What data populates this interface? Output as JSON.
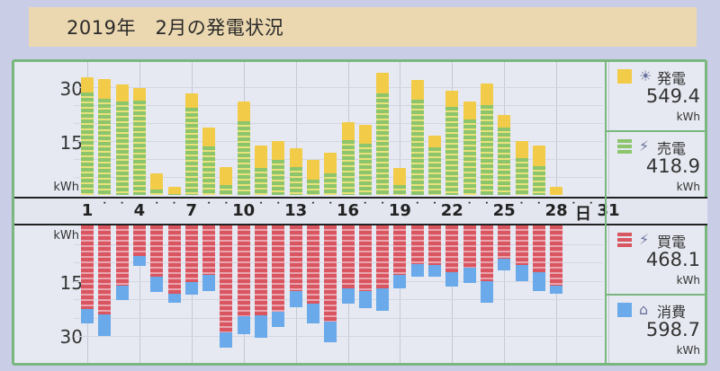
{
  "header": {
    "title": "2019年　2月の発電状況"
  },
  "axis": {
    "top_y_labels": [
      "30",
      "15"
    ],
    "top_unit": "kWh",
    "bottom_y_labels": [
      "15",
      "30"
    ],
    "bottom_unit": "kWh",
    "x_ticks": [
      "1",
      "4",
      "7",
      "10",
      "13",
      "16",
      "19",
      "22",
      "25",
      "28",
      "31"
    ],
    "x_unit": "日"
  },
  "legend": {
    "generation": {
      "label": "発電",
      "value": "549.4",
      "unit": "kWh",
      "color": "#f2cc48",
      "icon": "sun-icon"
    },
    "sold": {
      "label": "売電",
      "value": "418.9",
      "unit": "kWh",
      "color": "#8dc56c",
      "icon": "power-tower-icon"
    },
    "bought": {
      "label": "買電",
      "value": "468.1",
      "unit": "kWh",
      "color": "#d9555f",
      "icon": "power-tower-icon"
    },
    "consumption": {
      "label": "消費",
      "value": "598.7",
      "unit": "kWh",
      "color": "#6aa9ea",
      "icon": "house-icon"
    }
  },
  "chart_data": {
    "type": "bar",
    "title": "2019年 2月の発電状況",
    "xlabel": "日",
    "ylabel": "kWh",
    "x": [
      1,
      2,
      3,
      4,
      5,
      6,
      7,
      8,
      9,
      10,
      11,
      12,
      13,
      14,
      15,
      16,
      17,
      18,
      19,
      20,
      21,
      22,
      23,
      24,
      25,
      26,
      27,
      28
    ],
    "top_ylim": [
      0,
      35
    ],
    "bottom_ylim": [
      0,
      35
    ],
    "series": [
      {
        "name": "発電",
        "panel": "top",
        "values": [
          32.8,
          32.2,
          30.7,
          29.7,
          6.0,
          2.2,
          28.2,
          18.7,
          7.7,
          26.0,
          13.7,
          15.0,
          13.0,
          9.7,
          11.7,
          20.2,
          19.5,
          34.0,
          7.5,
          32.0,
          16.5,
          29.0,
          26.0,
          31.0,
          22.2,
          15.0,
          13.7,
          2.2
        ]
      },
      {
        "name": "売電",
        "panel": "top",
        "values": [
          28.5,
          26.8,
          26.0,
          26.2,
          1.5,
          0.3,
          24.2,
          13.5,
          2.7,
          20.5,
          7.5,
          9.7,
          7.7,
          4.2,
          6.0,
          15.2,
          14.2,
          28.2,
          2.7,
          26.5,
          13.2,
          24.5,
          21.0,
          25.0,
          18.7,
          10.2,
          8.0,
          0.0
        ]
      },
      {
        "name": "消費",
        "panel": "bottom",
        "values": [
          26.5,
          30.0,
          20.3,
          10.9,
          18.1,
          21.0,
          18.8,
          17.8,
          33.2,
          29.6,
          30.5,
          27.6,
          22.3,
          26.6,
          31.7,
          21.3,
          22.5,
          23.2,
          17.0,
          14.0,
          14.0,
          16.7,
          15.5,
          20.9,
          12.2,
          15.0,
          17.9,
          18.6
        ]
      },
      {
        "name": "買電",
        "panel": "bottom",
        "values": [
          22.6,
          24.2,
          16.3,
          8.2,
          14.0,
          18.5,
          15.4,
          13.5,
          29.1,
          24.7,
          24.5,
          23.5,
          17.9,
          21.3,
          26.2,
          17.0,
          17.8,
          17.0,
          13.3,
          10.4,
          10.7,
          12.6,
          11.4,
          15.0,
          9.0,
          10.7,
          12.6,
          16.3
        ]
      }
    ],
    "totals": {
      "発電": 549.4,
      "売電": 418.9,
      "買電": 468.1,
      "消費": 598.7
    },
    "legend_position": "right",
    "grid": true
  }
}
